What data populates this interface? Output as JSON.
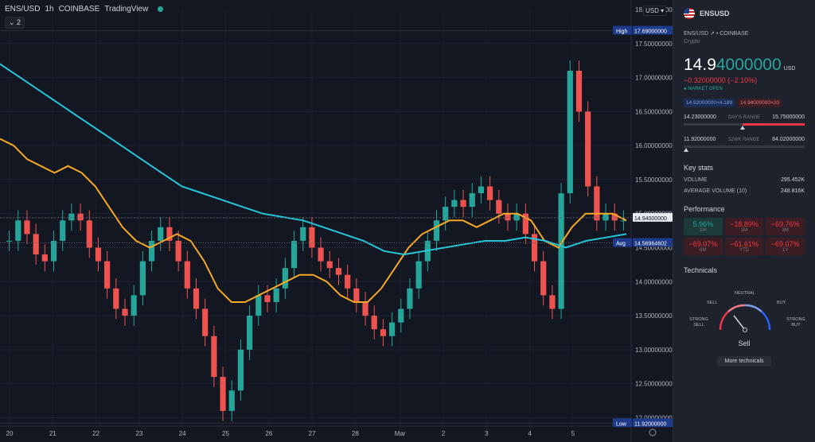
{
  "legend": {
    "symbol": "ENS/USD",
    "interval": "1h",
    "exchange": "COINBASE",
    "source": "TradingView",
    "collapse_label": "⌄ 2"
  },
  "yaxis": {
    "currency_label": "USD ▾",
    "labels": [
      "17.50000000",
      "17.00000000",
      "16.50000000",
      "16.00000000",
      "15.50000000",
      "15.00000000",
      "14.50000000",
      "14.00000000",
      "13.50000000",
      "13.00000000",
      "12.50000000",
      "12.00000000"
    ],
    "top_label": "18.00000000"
  },
  "xaxis": {
    "labels": [
      "20",
      "21",
      "22",
      "23",
      "24",
      "25",
      "26",
      "27",
      "28",
      "Mar",
      "2",
      "3",
      "4",
      "5"
    ]
  },
  "tags": {
    "high_label": "High",
    "high_value": "17.69000000",
    "low_label": "Low",
    "low_value": "11.92000000",
    "last_value": "14.94000000",
    "avg_label": "Avg",
    "avg_value": "14.56964602"
  },
  "chart_data": {
    "type": "line",
    "title": "",
    "series": [
      {
        "name": "",
        "color": "#26a69a",
        "values": [
          14.6,
          14.9,
          14.7,
          14.4,
          14.3,
          14.6,
          14.9,
          15.0,
          14.9,
          14.5,
          14.3,
          13.9,
          13.6,
          13.5,
          13.8,
          14.3,
          14.6,
          14.8,
          14.6,
          14.3,
          13.9,
          13.6,
          13.2,
          12.6,
          12.1,
          12.4,
          13.0,
          13.5,
          13.8,
          13.7,
          13.9,
          14.2,
          14.6,
          14.8,
          14.5,
          14.3,
          14.2,
          14.1,
          13.9,
          13.7,
          13.5,
          13.3,
          13.2,
          13.4,
          13.6,
          13.9,
          14.3,
          14.6,
          14.9,
          15.1,
          15.2,
          15.1,
          15.3,
          15.4,
          15.2,
          15.0,
          14.9,
          15.0,
          14.7,
          14.3,
          13.8,
          13.6,
          15.3,
          17.1,
          16.5,
          15.4,
          14.9,
          15.0,
          14.9,
          14.9
        ]
      },
      {
        "name": "",
        "color": "#f7a825",
        "values": [
          16.1,
          16.0,
          15.8,
          15.7,
          15.6,
          15.7,
          15.6,
          15.4,
          15.1,
          14.8,
          14.6,
          14.5,
          14.6,
          14.7,
          14.6,
          14.3,
          13.9,
          13.7,
          13.7,
          13.8,
          13.9,
          14.0,
          14.1,
          14.1,
          14.0,
          13.8,
          13.7,
          13.7,
          13.9,
          14.2,
          14.5,
          14.7,
          14.8,
          14.9,
          14.9,
          14.8,
          14.9,
          15.0,
          15.0,
          14.9,
          14.6,
          14.5,
          14.8,
          15.0,
          15.0,
          15.0,
          14.9
        ]
      },
      {
        "name": "",
        "color": "#26c6da",
        "values": [
          17.2,
          17.0,
          16.8,
          16.6,
          16.4,
          16.2,
          16.0,
          15.8,
          15.6,
          15.4,
          15.3,
          15.2,
          15.1,
          15.0,
          14.95,
          14.9,
          14.8,
          14.7,
          14.6,
          14.45,
          14.4,
          14.45,
          14.5,
          14.55,
          14.6,
          14.6,
          14.65,
          14.6,
          14.5,
          14.6,
          14.65,
          14.7
        ]
      }
    ],
    "ylim": [
      11.92,
      17.69
    ],
    "last": 14.94,
    "avg": 14.56964602,
    "grid": true
  },
  "sidebar": {
    "symbol": "ENSUSD",
    "pair_line": "ENS/USD  ↗  •  COINBASE",
    "category": "Crypto",
    "price_white": "14.9",
    "price_green": "4000000",
    "currency": "USD",
    "change": "−0.32000000 (−2.10%)",
    "market_status": "● MARKET OPEN",
    "bid": "14.92000000×4.189",
    "ask": "14.94000000×20",
    "day_low": "14.23000000",
    "day_label": "DAY'S RANGE",
    "day_high": "15.75000000",
    "wk_low": "11.92000000",
    "wk_label": "52WK RANGE",
    "wk_high": "84.02000000",
    "day_position": 0.49,
    "wk_position": 0.02,
    "key_stats_title": "Key stats",
    "volume_label": "VOLUME",
    "volume_value": "295.452K",
    "avg_volume_label": "AVERAGE VOLUME (10)",
    "avg_volume_value": "248.816K",
    "performance_title": "Performance",
    "performance": [
      {
        "value": "5.96%",
        "period": "1W",
        "status": "green"
      },
      {
        "value": "−18.89%",
        "period": "1M",
        "status": "red"
      },
      {
        "value": "−69.76%",
        "period": "3M",
        "status": "red"
      },
      {
        "value": "−69.07%",
        "period": "6M",
        "status": "red"
      },
      {
        "value": "−61.61%",
        "period": "YTD",
        "status": "red"
      },
      {
        "value": "−69.07%",
        "period": "1Y",
        "status": "red"
      }
    ],
    "technicals_title": "Technicals",
    "gauge": {
      "neutral": "NEUTRAL",
      "sell": "SELL",
      "buy": "BUY",
      "strong_sell": "STRONG SELL",
      "strong_buy": "STRONG BUY",
      "result": "Sell"
    },
    "more_button": "More technicals"
  }
}
